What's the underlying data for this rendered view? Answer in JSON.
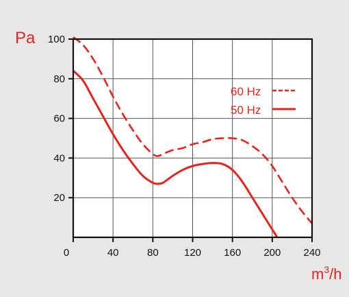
{
  "colors": {
    "background": "#e8e8e9",
    "plot_background": "#ffffff",
    "series": "#e8231c",
    "frame": "#111111",
    "grid": "#555555"
  },
  "chart_data": {
    "type": "line",
    "title": "",
    "ylabel": "Pa",
    "xlabel": "m³/h",
    "xlabel_base": "m",
    "xlabel_sup": "3",
    "xlabel_tail": "/h",
    "xlim": [
      0,
      240
    ],
    "ylim": [
      0,
      100
    ],
    "x_ticks": [
      0,
      40,
      80,
      120,
      160,
      200,
      240
    ],
    "y_ticks": [
      20,
      40,
      60,
      80,
      100
    ],
    "y_tick_labels": [
      "20",
      "40",
      "60",
      "80",
      "100"
    ],
    "grid": true,
    "legend_position": "top-right",
    "series": [
      {
        "name": "60 Hz",
        "style": "dashed",
        "x": [
          0,
          10,
          20,
          30,
          40,
          50,
          60,
          70,
          80,
          85,
          90,
          100,
          110,
          120,
          130,
          140,
          150,
          160,
          170,
          180,
          190,
          200,
          210,
          220,
          230,
          240
        ],
        "y": [
          101,
          97,
          90,
          81,
          71,
          62,
          54,
          47,
          42,
          41,
          42,
          44,
          45,
          47,
          48,
          49.5,
          50,
          50,
          49,
          46,
          42,
          36,
          28,
          20,
          13,
          7
        ]
      },
      {
        "name": "50 Hz",
        "style": "solid",
        "x": [
          0,
          10,
          20,
          30,
          40,
          50,
          60,
          70,
          80,
          85,
          90,
          100,
          110,
          120,
          130,
          140,
          150,
          160,
          170,
          180,
          190,
          200,
          205
        ],
        "y": [
          84,
          79,
          70,
          61,
          52,
          44,
          37,
          31,
          27.5,
          27,
          27.5,
          31,
          34,
          36,
          37,
          37.5,
          37,
          34,
          28,
          20,
          12,
          4,
          0
        ]
      }
    ]
  }
}
